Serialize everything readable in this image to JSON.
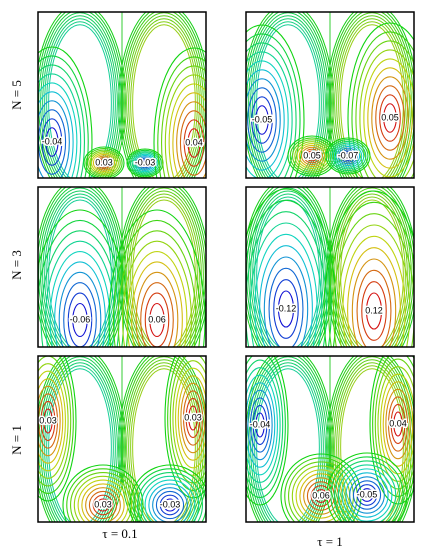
{
  "row_labels": [
    "N = 5",
    "N = 3",
    "N = 1"
  ],
  "column_labels": [
    "τ = 0.1",
    "τ = 1"
  ],
  "panels": [
    [
      {
        "labels": [
          "-0.04",
          "0.03",
          "-0.03",
          "0.04"
        ]
      },
      {
        "labels": [
          "-0.05",
          "0.05",
          "0.05",
          "-0.07"
        ]
      }
    ],
    [
      {
        "labels": [
          "-0.06",
          "0.06"
        ]
      },
      {
        "labels": [
          "-0.12",
          "0.12"
        ]
      }
    ],
    [
      {
        "labels": [
          "0.03",
          "0.03",
          "0.03",
          "-0.03"
        ]
      },
      {
        "labels": [
          "-0.04",
          "0.04",
          "0.06",
          "-0.05"
        ]
      }
    ]
  ]
}
